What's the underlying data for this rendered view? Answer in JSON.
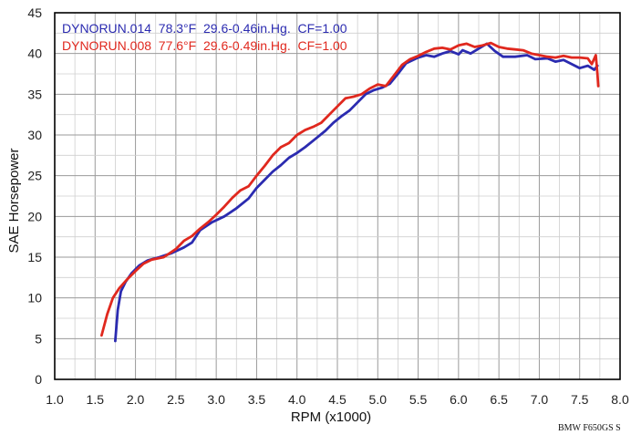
{
  "chart_data": {
    "type": "line",
    "xlabel": "RPM (x1000)",
    "ylabel": "SAE Horsepower",
    "xlim": [
      1.0,
      8.0
    ],
    "ylim": [
      0,
      45
    ],
    "x_ticks": [
      "1.0",
      "1.5",
      "2.0",
      "2.5",
      "3.0",
      "3.5",
      "4.0",
      "4.5",
      "5.0",
      "5.5",
      "6.0",
      "6.5",
      "7.0",
      "7.5",
      "8.0"
    ],
    "y_ticks": [
      "0",
      "5",
      "10",
      "15",
      "20",
      "25",
      "30",
      "35",
      "40",
      "45"
    ],
    "grid": true,
    "legend_position": "top-left",
    "footnote": "BMW F650GS S",
    "series": [
      {
        "name": "DYNORUN.014  78.3°F  29.6-0.46in.Hg.  CF=1.00",
        "color": "#2b2bb0",
        "points": [
          [
            1.75,
            4.7
          ],
          [
            1.78,
            8.5
          ],
          [
            1.82,
            10.8
          ],
          [
            1.88,
            12.0
          ],
          [
            1.95,
            13.0
          ],
          [
            2.05,
            14.0
          ],
          [
            2.15,
            14.6
          ],
          [
            2.3,
            15.0
          ],
          [
            2.45,
            15.5
          ],
          [
            2.6,
            16.2
          ],
          [
            2.7,
            16.8
          ],
          [
            2.8,
            18.3
          ],
          [
            2.95,
            19.3
          ],
          [
            3.1,
            20.0
          ],
          [
            3.25,
            21.0
          ],
          [
            3.4,
            22.2
          ],
          [
            3.5,
            23.5
          ],
          [
            3.6,
            24.5
          ],
          [
            3.7,
            25.5
          ],
          [
            3.8,
            26.3
          ],
          [
            3.9,
            27.2
          ],
          [
            4.0,
            27.8
          ],
          [
            4.1,
            28.5
          ],
          [
            4.2,
            29.3
          ],
          [
            4.35,
            30.5
          ],
          [
            4.45,
            31.5
          ],
          [
            4.55,
            32.3
          ],
          [
            4.65,
            33.0
          ],
          [
            4.75,
            34.0
          ],
          [
            4.85,
            35.0
          ],
          [
            4.95,
            35.5
          ],
          [
            5.05,
            35.8
          ],
          [
            5.15,
            36.3
          ],
          [
            5.25,
            37.5
          ],
          [
            5.35,
            38.8
          ],
          [
            5.5,
            39.5
          ],
          [
            5.6,
            39.8
          ],
          [
            5.7,
            39.6
          ],
          [
            5.8,
            40.0
          ],
          [
            5.9,
            40.3
          ],
          [
            6.0,
            39.9
          ],
          [
            6.05,
            40.4
          ],
          [
            6.15,
            40.0
          ],
          [
            6.25,
            40.6
          ],
          [
            6.35,
            41.2
          ],
          [
            6.45,
            40.3
          ],
          [
            6.55,
            39.6
          ],
          [
            6.7,
            39.6
          ],
          [
            6.85,
            39.8
          ],
          [
            6.95,
            39.3
          ],
          [
            7.1,
            39.4
          ],
          [
            7.2,
            39.0
          ],
          [
            7.3,
            39.2
          ],
          [
            7.4,
            38.7
          ],
          [
            7.5,
            38.2
          ],
          [
            7.6,
            38.5
          ],
          [
            7.68,
            38.0
          ],
          [
            7.72,
            38.5
          ]
        ]
      },
      {
        "name": "DYNORUN.008  77.6°F  29.6-0.49in.Hg.  CF=1.00",
        "color": "#e0281e",
        "points": [
          [
            1.58,
            5.4
          ],
          [
            1.65,
            8.0
          ],
          [
            1.72,
            10.0
          ],
          [
            1.8,
            11.2
          ],
          [
            1.9,
            12.3
          ],
          [
            2.0,
            13.3
          ],
          [
            2.1,
            14.2
          ],
          [
            2.2,
            14.7
          ],
          [
            2.35,
            15.0
          ],
          [
            2.5,
            16.0
          ],
          [
            2.6,
            17.0
          ],
          [
            2.7,
            17.6
          ],
          [
            2.8,
            18.5
          ],
          [
            2.9,
            19.3
          ],
          [
            3.0,
            20.2
          ],
          [
            3.1,
            21.2
          ],
          [
            3.2,
            22.3
          ],
          [
            3.3,
            23.2
          ],
          [
            3.4,
            23.7
          ],
          [
            3.5,
            25.0
          ],
          [
            3.6,
            26.2
          ],
          [
            3.7,
            27.5
          ],
          [
            3.8,
            28.5
          ],
          [
            3.9,
            29.0
          ],
          [
            4.0,
            30.0
          ],
          [
            4.1,
            30.6
          ],
          [
            4.2,
            31.0
          ],
          [
            4.3,
            31.5
          ],
          [
            4.4,
            32.5
          ],
          [
            4.5,
            33.5
          ],
          [
            4.6,
            34.5
          ],
          [
            4.7,
            34.7
          ],
          [
            4.8,
            35.0
          ],
          [
            4.9,
            35.7
          ],
          [
            5.0,
            36.2
          ],
          [
            5.1,
            36.0
          ],
          [
            5.2,
            37.3
          ],
          [
            5.3,
            38.6
          ],
          [
            5.4,
            39.3
          ],
          [
            5.5,
            39.7
          ],
          [
            5.6,
            40.2
          ],
          [
            5.7,
            40.6
          ],
          [
            5.8,
            40.7
          ],
          [
            5.9,
            40.5
          ],
          [
            6.0,
            41.0
          ],
          [
            6.1,
            41.2
          ],
          [
            6.2,
            40.8
          ],
          [
            6.3,
            41.0
          ],
          [
            6.4,
            41.3
          ],
          [
            6.5,
            40.8
          ],
          [
            6.6,
            40.6
          ],
          [
            6.7,
            40.5
          ],
          [
            6.8,
            40.4
          ],
          [
            6.9,
            40.0
          ],
          [
            7.0,
            39.8
          ],
          [
            7.1,
            39.6
          ],
          [
            7.2,
            39.5
          ],
          [
            7.3,
            39.7
          ],
          [
            7.4,
            39.5
          ],
          [
            7.5,
            39.5
          ],
          [
            7.6,
            39.4
          ],
          [
            7.65,
            38.7
          ],
          [
            7.7,
            39.8
          ],
          [
            7.72,
            37.5
          ],
          [
            7.73,
            36.0
          ]
        ]
      }
    ]
  }
}
